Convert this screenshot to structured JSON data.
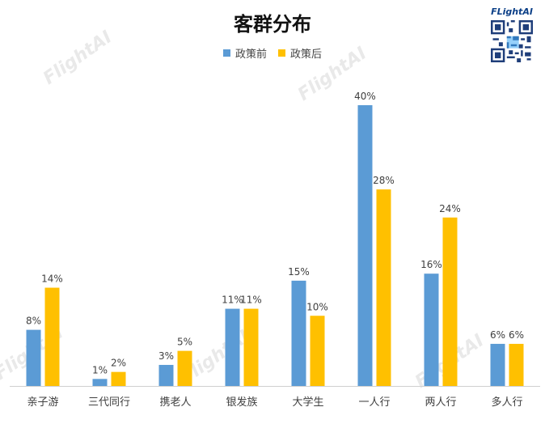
{
  "chart_data": {
    "type": "bar",
    "title": "客群分布",
    "categories": [
      "亲子游",
      "三代同行",
      "携老人",
      "银发族",
      "大学生",
      "一人行",
      "两人行",
      "多人行"
    ],
    "series": [
      {
        "name": "政策前",
        "values": [
          8,
          1,
          3,
          11,
          15,
          40,
          16,
          6
        ],
        "labels": [
          "8%",
          "1%",
          "3%",
          "11%",
          "15%",
          "40%",
          "16%",
          "6%"
        ],
        "color": "#5b9bd5"
      },
      {
        "name": "政策后",
        "values": [
          14,
          2,
          5,
          11,
          10,
          28,
          24,
          6
        ],
        "labels": [
          "14%",
          "2%",
          "5%",
          "11%",
          "10%",
          "28%",
          "24%",
          "6%"
        ],
        "color": "#ffc000"
      }
    ],
    "xlabel": "",
    "ylabel": "",
    "grid": false,
    "legend_position": "top-center"
  },
  "logo": {
    "brand": "FLightAI",
    "qr_icon": "qr-code-icon"
  },
  "watermark": "FlightAI"
}
